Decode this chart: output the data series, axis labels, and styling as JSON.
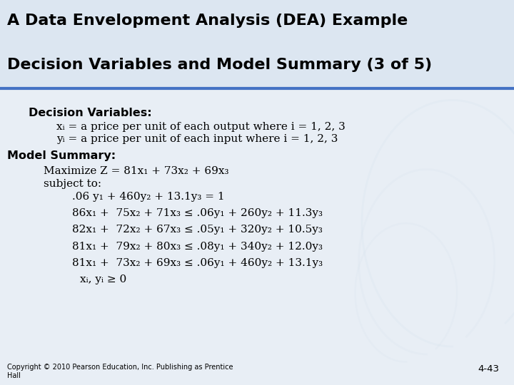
{
  "title_line1": "A Data Envelopment Analysis (DEA) Example",
  "title_line2": "Decision Variables and Model Summary (3 of 5)",
  "title_bg_color": "#dce6f1",
  "title_text_color": "#000000",
  "body_bg_color": "#e8eef5",
  "header_line_color": "#4472c4",
  "copyright": "Copyright © 2010 Pearson Education, Inc. Publishing as Prentice\nHall",
  "page_number": "4-43",
  "decision_vars_header": "Decision Variables:",
  "dv_line1": "xᵢ = a price per unit of each output where i = 1, 2, 3",
  "dv_line2": "yᵢ = a price per unit of each input where i = 1, 2, 3",
  "model_summary_header": "Model Summary:",
  "maximize_line": "Maximize Z = 81x₁ + 73x₂ + 69x₃",
  "subject_to": "subject to:",
  "constraints": [
    ".06 y₁ + 460y₂ + 13.1y₃ = 1",
    "86x₁ +  75x₂ + 71x₃ ≤ .06y₁ + 260y₂ + 11.3y₃",
    "82x₁ +  72x₂ + 67x₃ ≤ .05y₁ + 320y₂ + 10.5y₃",
    "81x₁ +  79x₂ + 80x₃ ≤ .08y₁ + 340y₂ + 12.0y₃",
    "81x₁ +  73x₂ + 69x₃ ≤ .06y₁ + 460y₂ + 13.1y₃",
    "xᵢ, yᵢ ≥ 0"
  ]
}
